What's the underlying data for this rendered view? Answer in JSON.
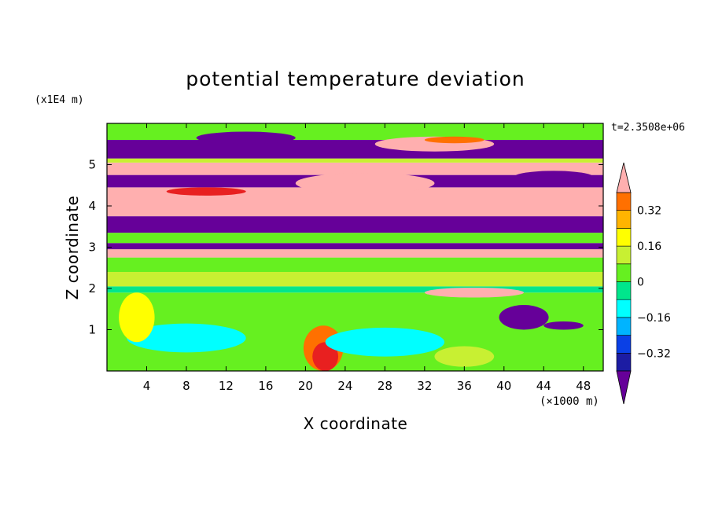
{
  "chart_data": {
    "type": "heatmap",
    "title": "potential temperature deviation",
    "xlabel": "X coordinate",
    "ylabel": "Z coordinate",
    "x_unit": "(×1000 m)",
    "y_unit": "(x1E4 m)",
    "time_label": "t=2.3508e+06",
    "xlim": [
      0,
      50
    ],
    "ylim": [
      0,
      6
    ],
    "x_ticks": [
      "4",
      "8",
      "12",
      "16",
      "20",
      "24",
      "28",
      "32",
      "36",
      "40",
      "44",
      "48"
    ],
    "x_tick_values": [
      4,
      8,
      12,
      16,
      20,
      24,
      28,
      32,
      36,
      40,
      44,
      48
    ],
    "y_ticks": [
      "1",
      "2",
      "3",
      "4",
      "5"
    ],
    "y_tick_values": [
      1,
      2,
      3,
      4,
      5
    ],
    "colorbar": {
      "labels": [
        "0.32",
        "0.16",
        "0",
        "−0.16",
        "−0.32"
      ],
      "label_values": [
        0.32,
        0.16,
        0,
        -0.16,
        -0.32
      ],
      "levels": [
        -0.4,
        -0.32,
        -0.24,
        -0.16,
        -0.08,
        0,
        0.08,
        0.16,
        0.24,
        0.32,
        0.4
      ],
      "colors": [
        "#660099",
        "#1c1ca3",
        "#0a40e6",
        "#00b4ff",
        "#00ffff",
        "#00e68c",
        "#66f020",
        "#c8f032",
        "#ffff00",
        "#ffb400",
        "#ff7000",
        "#e82020",
        "#ffafaf"
      ]
    }
  }
}
